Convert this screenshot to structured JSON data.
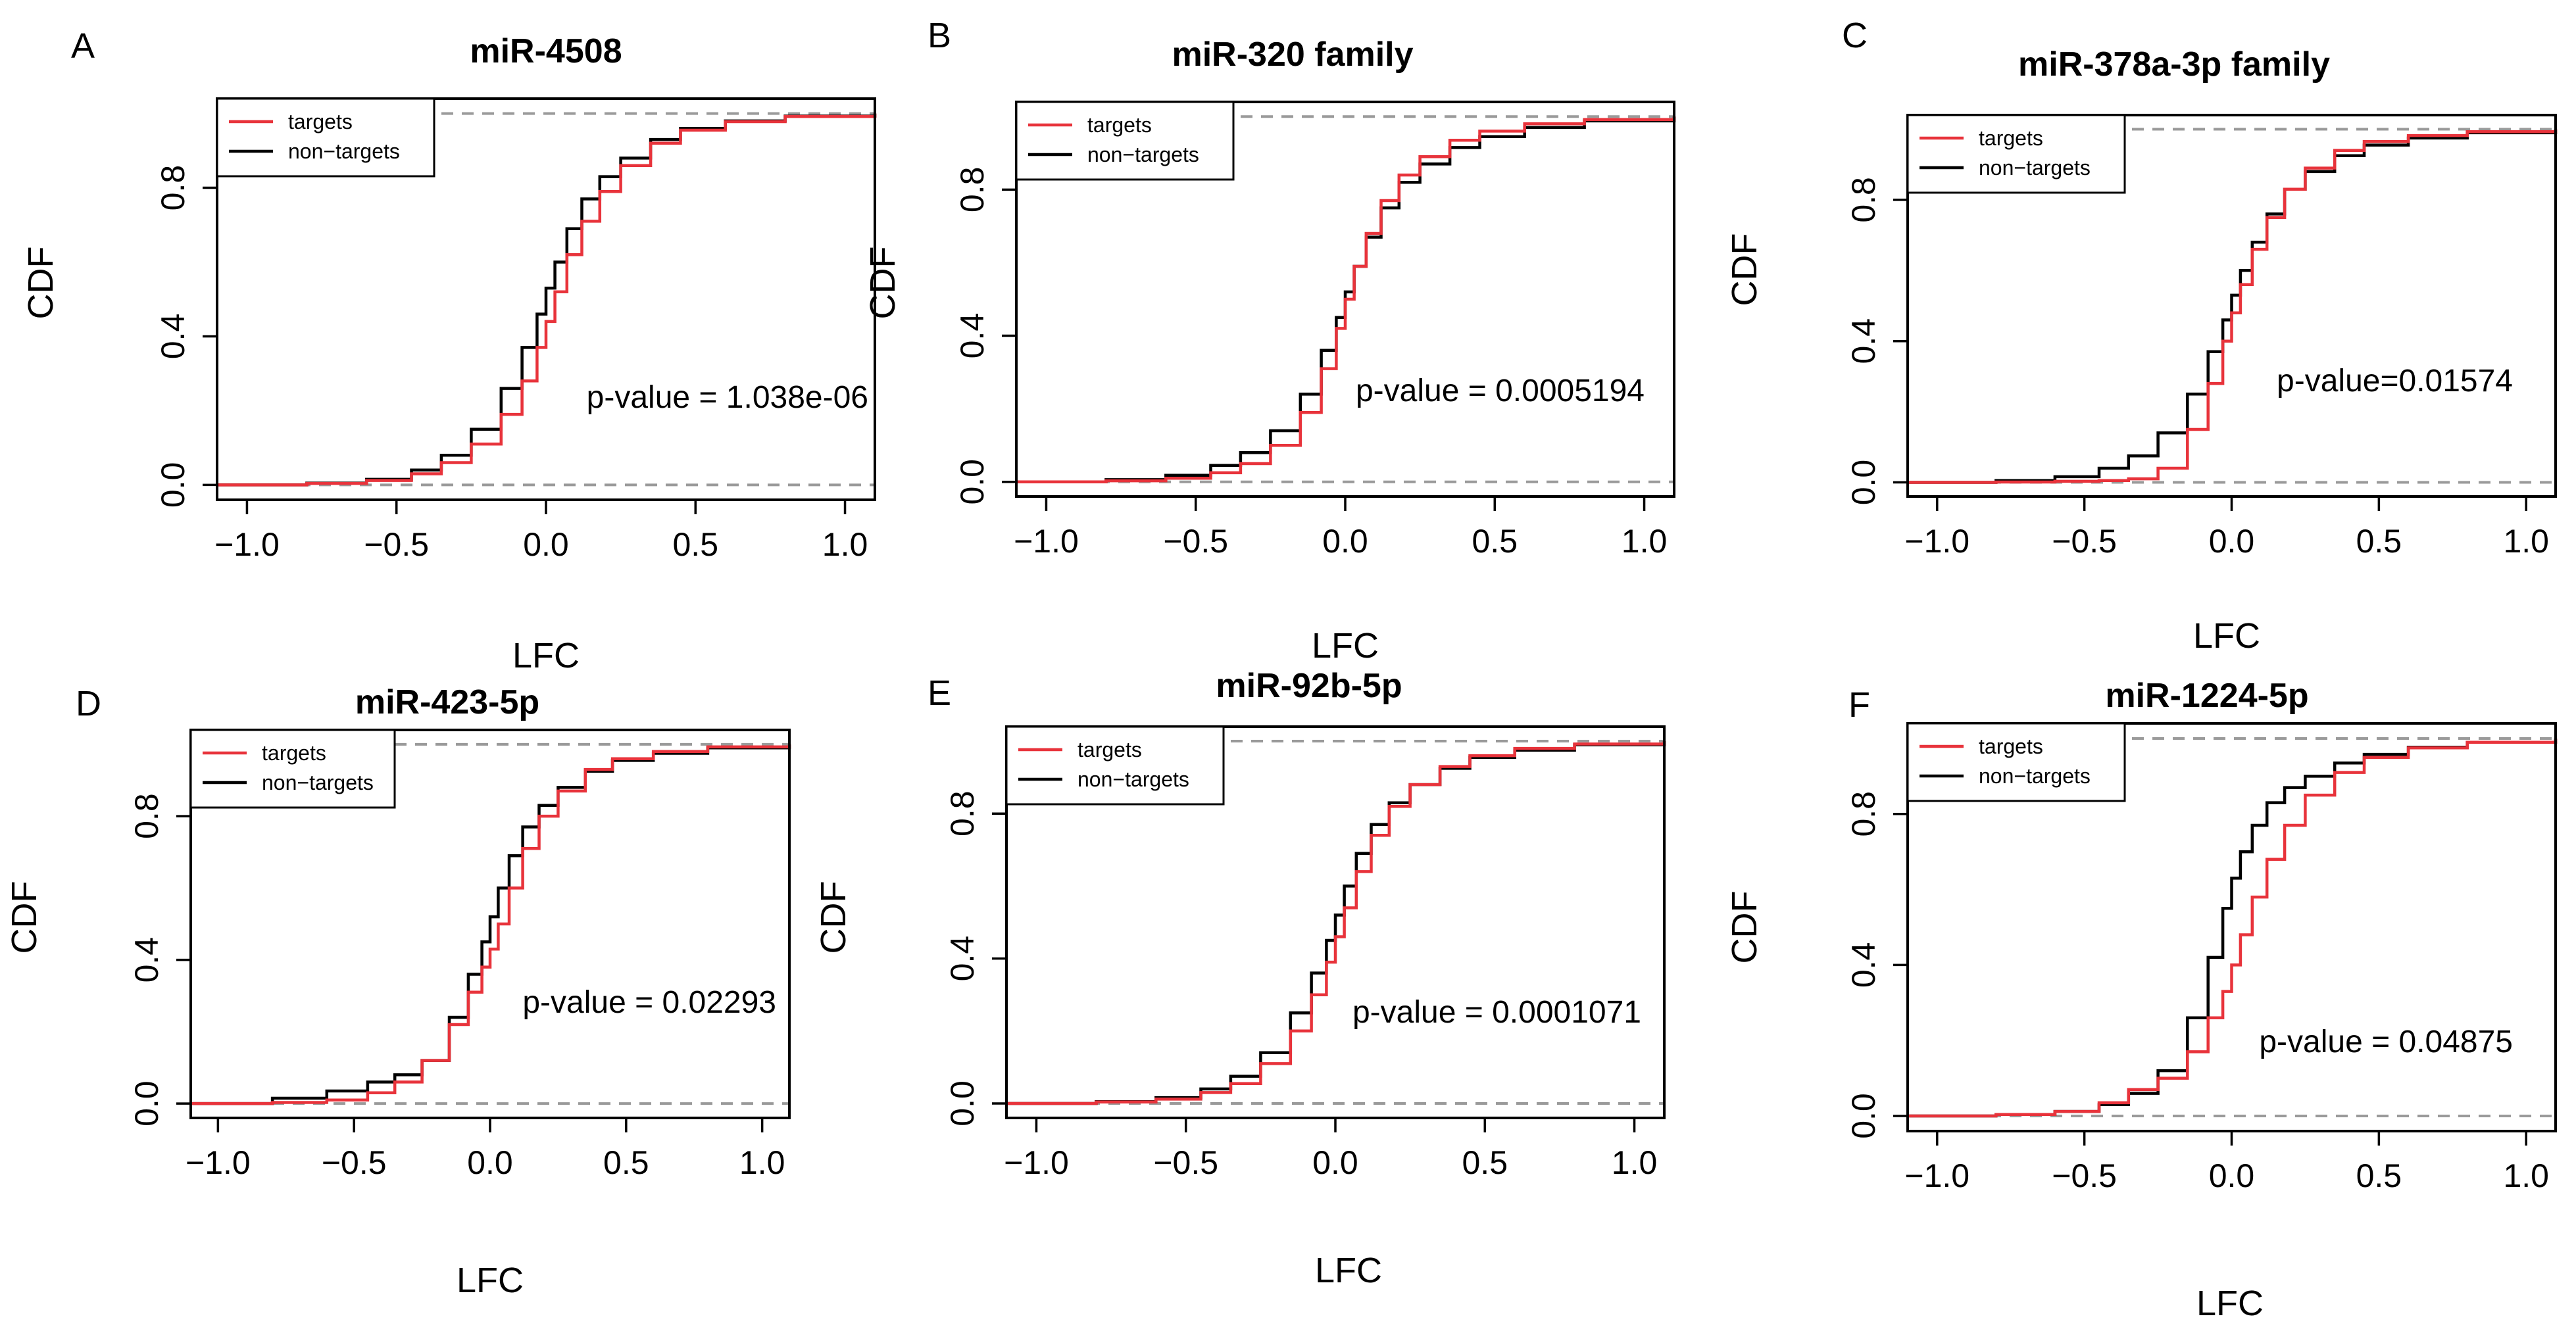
{
  "figure": {
    "series_colors": {
      "targets": "#e8333b",
      "non_targets": "#000000"
    },
    "reference_line_color": "#9a9a9a"
  },
  "chart_data": [
    {
      "letter": "A",
      "type": "line",
      "title": "miR-4508",
      "xlabel": "LFC",
      "ylabel": "CDF",
      "xlim": [
        -1.1,
        1.1
      ],
      "ylim": [
        0,
        1
      ],
      "xticks": [
        -1.0,
        -0.5,
        0.0,
        0.5,
        1.0
      ],
      "xtick_labels": [
        "−1.0",
        "−0.5",
        "0.0",
        "0.5",
        "1.0"
      ],
      "yticks": [
        0.0,
        0.4,
        0.8
      ],
      "ytick_labels": [
        "0.0",
        "0.4",
        "0.8"
      ],
      "annotation": "p-value = 1.038e-06",
      "legend": [
        "targets",
        "non−targets"
      ],
      "series": [
        {
          "name": "targets",
          "x": [
            -1.1,
            -0.8,
            -0.6,
            -0.45,
            -0.35,
            -0.25,
            -0.15,
            -0.08,
            -0.03,
            0.0,
            0.03,
            0.07,
            0.12,
            0.18,
            0.25,
            0.35,
            0.45,
            0.6,
            0.8,
            1.1
          ],
          "y": [
            0.0,
            0.004,
            0.012,
            0.03,
            0.06,
            0.11,
            0.19,
            0.28,
            0.37,
            0.44,
            0.52,
            0.62,
            0.71,
            0.79,
            0.86,
            0.92,
            0.955,
            0.978,
            0.992,
            1.0
          ]
        },
        {
          "name": "non−targets",
          "x": [
            -1.1,
            -0.8,
            -0.6,
            -0.45,
            -0.35,
            -0.25,
            -0.15,
            -0.08,
            -0.03,
            0.0,
            0.03,
            0.07,
            0.12,
            0.18,
            0.25,
            0.35,
            0.45,
            0.6,
            0.8,
            1.1
          ],
          "y": [
            0.0,
            0.005,
            0.015,
            0.04,
            0.08,
            0.15,
            0.26,
            0.37,
            0.46,
            0.53,
            0.6,
            0.69,
            0.77,
            0.83,
            0.88,
            0.93,
            0.96,
            0.98,
            0.993,
            1.0
          ]
        }
      ]
    },
    {
      "letter": "B",
      "type": "line",
      "title": "miR-320 family",
      "xlabel": "LFC",
      "ylabel": "CDF",
      "xlim": [
        -1.1,
        1.1
      ],
      "ylim": [
        0,
        1
      ],
      "xticks": [
        -1.0,
        -0.5,
        0.0,
        0.5,
        1.0
      ],
      "xtick_labels": [
        "−1.0",
        "−0.5",
        "0.0",
        "0.5",
        "1.0"
      ],
      "yticks": [
        0.0,
        0.4,
        0.8
      ],
      "ytick_labels": [
        "0.0",
        "0.4",
        "0.8"
      ],
      "annotation": "p-value = 0.0005194",
      "legend": [
        "targets",
        "non−targets"
      ],
      "series": [
        {
          "name": "targets",
          "x": [
            -1.1,
            -0.8,
            -0.6,
            -0.45,
            -0.35,
            -0.25,
            -0.15,
            -0.08,
            -0.03,
            0.0,
            0.03,
            0.07,
            0.12,
            0.18,
            0.25,
            0.35,
            0.45,
            0.6,
            0.8,
            1.1
          ],
          "y": [
            0.0,
            0.003,
            0.01,
            0.025,
            0.05,
            0.1,
            0.19,
            0.31,
            0.42,
            0.5,
            0.59,
            0.68,
            0.77,
            0.84,
            0.89,
            0.935,
            0.96,
            0.98,
            0.992,
            1.0
          ]
        },
        {
          "name": "non−targets",
          "x": [
            -1.1,
            -0.8,
            -0.6,
            -0.45,
            -0.35,
            -0.25,
            -0.15,
            -0.08,
            -0.03,
            0.0,
            0.03,
            0.07,
            0.12,
            0.18,
            0.25,
            0.35,
            0.45,
            0.6,
            0.8,
            1.1
          ],
          "y": [
            0.0,
            0.006,
            0.018,
            0.045,
            0.08,
            0.14,
            0.24,
            0.36,
            0.45,
            0.52,
            0.59,
            0.67,
            0.75,
            0.82,
            0.87,
            0.915,
            0.945,
            0.97,
            0.988,
            1.0
          ]
        }
      ]
    },
    {
      "letter": "C",
      "type": "line",
      "title": "miR-378a-3p family",
      "xlabel": "LFC",
      "ylabel": "CDF",
      "xlim": [
        -1.1,
        1.1
      ],
      "ylim": [
        0,
        1
      ],
      "xticks": [
        -1.0,
        -0.5,
        0.0,
        0.5,
        1.0
      ],
      "xtick_labels": [
        "−1.0",
        "−0.5",
        "0.0",
        "0.5",
        "1.0"
      ],
      "yticks": [
        0.0,
        0.4,
        0.8
      ],
      "ytick_labels": [
        "0.0",
        "0.4",
        "0.8"
      ],
      "annotation": "p-value=0.01574",
      "legend": [
        "targets",
        "non−targets"
      ],
      "series": [
        {
          "name": "targets",
          "x": [
            -1.1,
            -0.8,
            -0.6,
            -0.45,
            -0.35,
            -0.25,
            -0.15,
            -0.08,
            -0.03,
            0.0,
            0.03,
            0.07,
            0.12,
            0.18,
            0.25,
            0.35,
            0.45,
            0.6,
            0.8,
            1.1
          ],
          "y": [
            0.0,
            0.001,
            0.003,
            0.005,
            0.01,
            0.04,
            0.15,
            0.28,
            0.4,
            0.48,
            0.56,
            0.66,
            0.75,
            0.83,
            0.89,
            0.94,
            0.965,
            0.982,
            0.993,
            1.0
          ]
        },
        {
          "name": "non−targets",
          "x": [
            -1.1,
            -0.8,
            -0.6,
            -0.45,
            -0.35,
            -0.25,
            -0.15,
            -0.08,
            -0.03,
            0.0,
            0.03,
            0.07,
            0.12,
            0.18,
            0.25,
            0.35,
            0.45,
            0.6,
            0.8,
            1.1
          ],
          "y": [
            0.0,
            0.005,
            0.016,
            0.04,
            0.075,
            0.14,
            0.25,
            0.37,
            0.46,
            0.53,
            0.6,
            0.68,
            0.76,
            0.83,
            0.88,
            0.925,
            0.955,
            0.975,
            0.99,
            1.0
          ]
        }
      ]
    },
    {
      "letter": "D",
      "type": "line",
      "title": "miR-423-5p",
      "xlabel": "LFC",
      "ylabel": "CDF",
      "xlim": [
        -1.1,
        1.1
      ],
      "ylim": [
        0,
        1
      ],
      "xticks": [
        -1.0,
        -0.5,
        0.0,
        0.5,
        1.0
      ],
      "xtick_labels": [
        "−1.0",
        "−0.5",
        "0.0",
        "0.5",
        "1.0"
      ],
      "yticks": [
        0.0,
        0.4,
        0.8
      ],
      "ytick_labels": [
        "0.0",
        "0.4",
        "0.8"
      ],
      "annotation": "p-value = 0.02293",
      "legend": [
        "targets",
        "non−targets"
      ],
      "series": [
        {
          "name": "targets",
          "x": [
            -1.1,
            -0.8,
            -0.6,
            -0.45,
            -0.35,
            -0.25,
            -0.15,
            -0.08,
            -0.03,
            0.0,
            0.03,
            0.07,
            0.12,
            0.18,
            0.25,
            0.35,
            0.45,
            0.6,
            0.8,
            1.1
          ],
          "y": [
            0.0,
            0.003,
            0.01,
            0.03,
            0.06,
            0.12,
            0.22,
            0.31,
            0.38,
            0.43,
            0.5,
            0.6,
            0.71,
            0.8,
            0.87,
            0.93,
            0.96,
            0.98,
            0.993,
            1.0
          ]
        },
        {
          "name": "non−targets",
          "x": [
            -1.1,
            -0.8,
            -0.6,
            -0.45,
            -0.35,
            -0.25,
            -0.15,
            -0.08,
            -0.03,
            0.0,
            0.03,
            0.07,
            0.12,
            0.18,
            0.25,
            0.35,
            0.45,
            0.6,
            0.8,
            1.1
          ],
          "y": [
            0.0,
            0.015,
            0.035,
            0.06,
            0.08,
            0.12,
            0.24,
            0.36,
            0.45,
            0.52,
            0.6,
            0.69,
            0.77,
            0.83,
            0.88,
            0.925,
            0.955,
            0.975,
            0.99,
            1.0
          ]
        }
      ]
    },
    {
      "letter": "E",
      "type": "line",
      "title": "miR-92b-5p",
      "xlabel": "LFC",
      "ylabel": "CDF",
      "xlim": [
        -1.1,
        1.1
      ],
      "ylim": [
        0,
        1
      ],
      "xticks": [
        -1.0,
        -0.5,
        0.0,
        0.5,
        1.0
      ],
      "xtick_labels": [
        "−1.0",
        "−0.5",
        "0.0",
        "0.5",
        "1.0"
      ],
      "yticks": [
        0.0,
        0.4,
        0.8
      ],
      "ytick_labels": [
        "0.0",
        "0.4",
        "0.8"
      ],
      "annotation": "p-value = 0.0001071",
      "legend": [
        "targets",
        "non−targets"
      ],
      "series": [
        {
          "name": "targets",
          "x": [
            -1.1,
            -0.8,
            -0.6,
            -0.45,
            -0.35,
            -0.25,
            -0.15,
            -0.08,
            -0.03,
            0.0,
            0.03,
            0.07,
            0.12,
            0.18,
            0.25,
            0.35,
            0.45,
            0.6,
            0.8,
            1.1
          ],
          "y": [
            0.0,
            0.004,
            0.012,
            0.03,
            0.055,
            0.11,
            0.2,
            0.3,
            0.39,
            0.46,
            0.54,
            0.64,
            0.74,
            0.82,
            0.88,
            0.93,
            0.96,
            0.98,
            0.992,
            1.0
          ]
        },
        {
          "name": "non−targets",
          "x": [
            -1.1,
            -0.8,
            -0.6,
            -0.45,
            -0.35,
            -0.25,
            -0.15,
            -0.08,
            -0.03,
            0.0,
            0.03,
            0.07,
            0.12,
            0.18,
            0.25,
            0.35,
            0.45,
            0.6,
            0.8,
            1.1
          ],
          "y": [
            0.0,
            0.005,
            0.016,
            0.04,
            0.075,
            0.14,
            0.25,
            0.36,
            0.45,
            0.52,
            0.6,
            0.69,
            0.77,
            0.83,
            0.88,
            0.925,
            0.955,
            0.975,
            0.99,
            1.0
          ]
        }
      ]
    },
    {
      "letter": "F",
      "type": "line",
      "title": "miR-1224-5p",
      "xlabel": "LFC",
      "ylabel": "CDF",
      "xlim": [
        -1.1,
        1.1
      ],
      "ylim": [
        0,
        1
      ],
      "xticks": [
        -1.0,
        -0.5,
        0.0,
        0.5,
        1.0
      ],
      "xtick_labels": [
        "−1.0",
        "−0.5",
        "0.0",
        "0.5",
        "1.0"
      ],
      "yticks": [
        0.0,
        0.4,
        0.8
      ],
      "ytick_labels": [
        "0.0",
        "0.4",
        "0.8"
      ],
      "annotation": "p-value = 0.04875",
      "legend": [
        "targets",
        "non−targets"
      ],
      "series": [
        {
          "name": "targets",
          "x": [
            -1.1,
            -0.8,
            -0.6,
            -0.45,
            -0.35,
            -0.25,
            -0.15,
            -0.08,
            -0.03,
            0.0,
            0.03,
            0.07,
            0.12,
            0.18,
            0.25,
            0.35,
            0.45,
            0.6,
            0.8,
            1.1
          ],
          "y": [
            0.0,
            0.004,
            0.012,
            0.035,
            0.07,
            0.1,
            0.17,
            0.26,
            0.33,
            0.4,
            0.48,
            0.58,
            0.68,
            0.77,
            0.85,
            0.91,
            0.95,
            0.975,
            0.99,
            1.0
          ]
        },
        {
          "name": "non−targets",
          "x": [
            -1.1,
            -0.8,
            -0.6,
            -0.45,
            -0.35,
            -0.25,
            -0.15,
            -0.08,
            -0.03,
            0.0,
            0.03,
            0.07,
            0.12,
            0.18,
            0.25,
            0.35,
            0.45,
            0.6,
            0.8,
            1.1
          ],
          "y": [
            0.0,
            0.004,
            0.012,
            0.03,
            0.06,
            0.12,
            0.26,
            0.42,
            0.55,
            0.63,
            0.7,
            0.77,
            0.83,
            0.87,
            0.9,
            0.935,
            0.958,
            0.977,
            0.99,
            1.0
          ]
        }
      ]
    }
  ]
}
